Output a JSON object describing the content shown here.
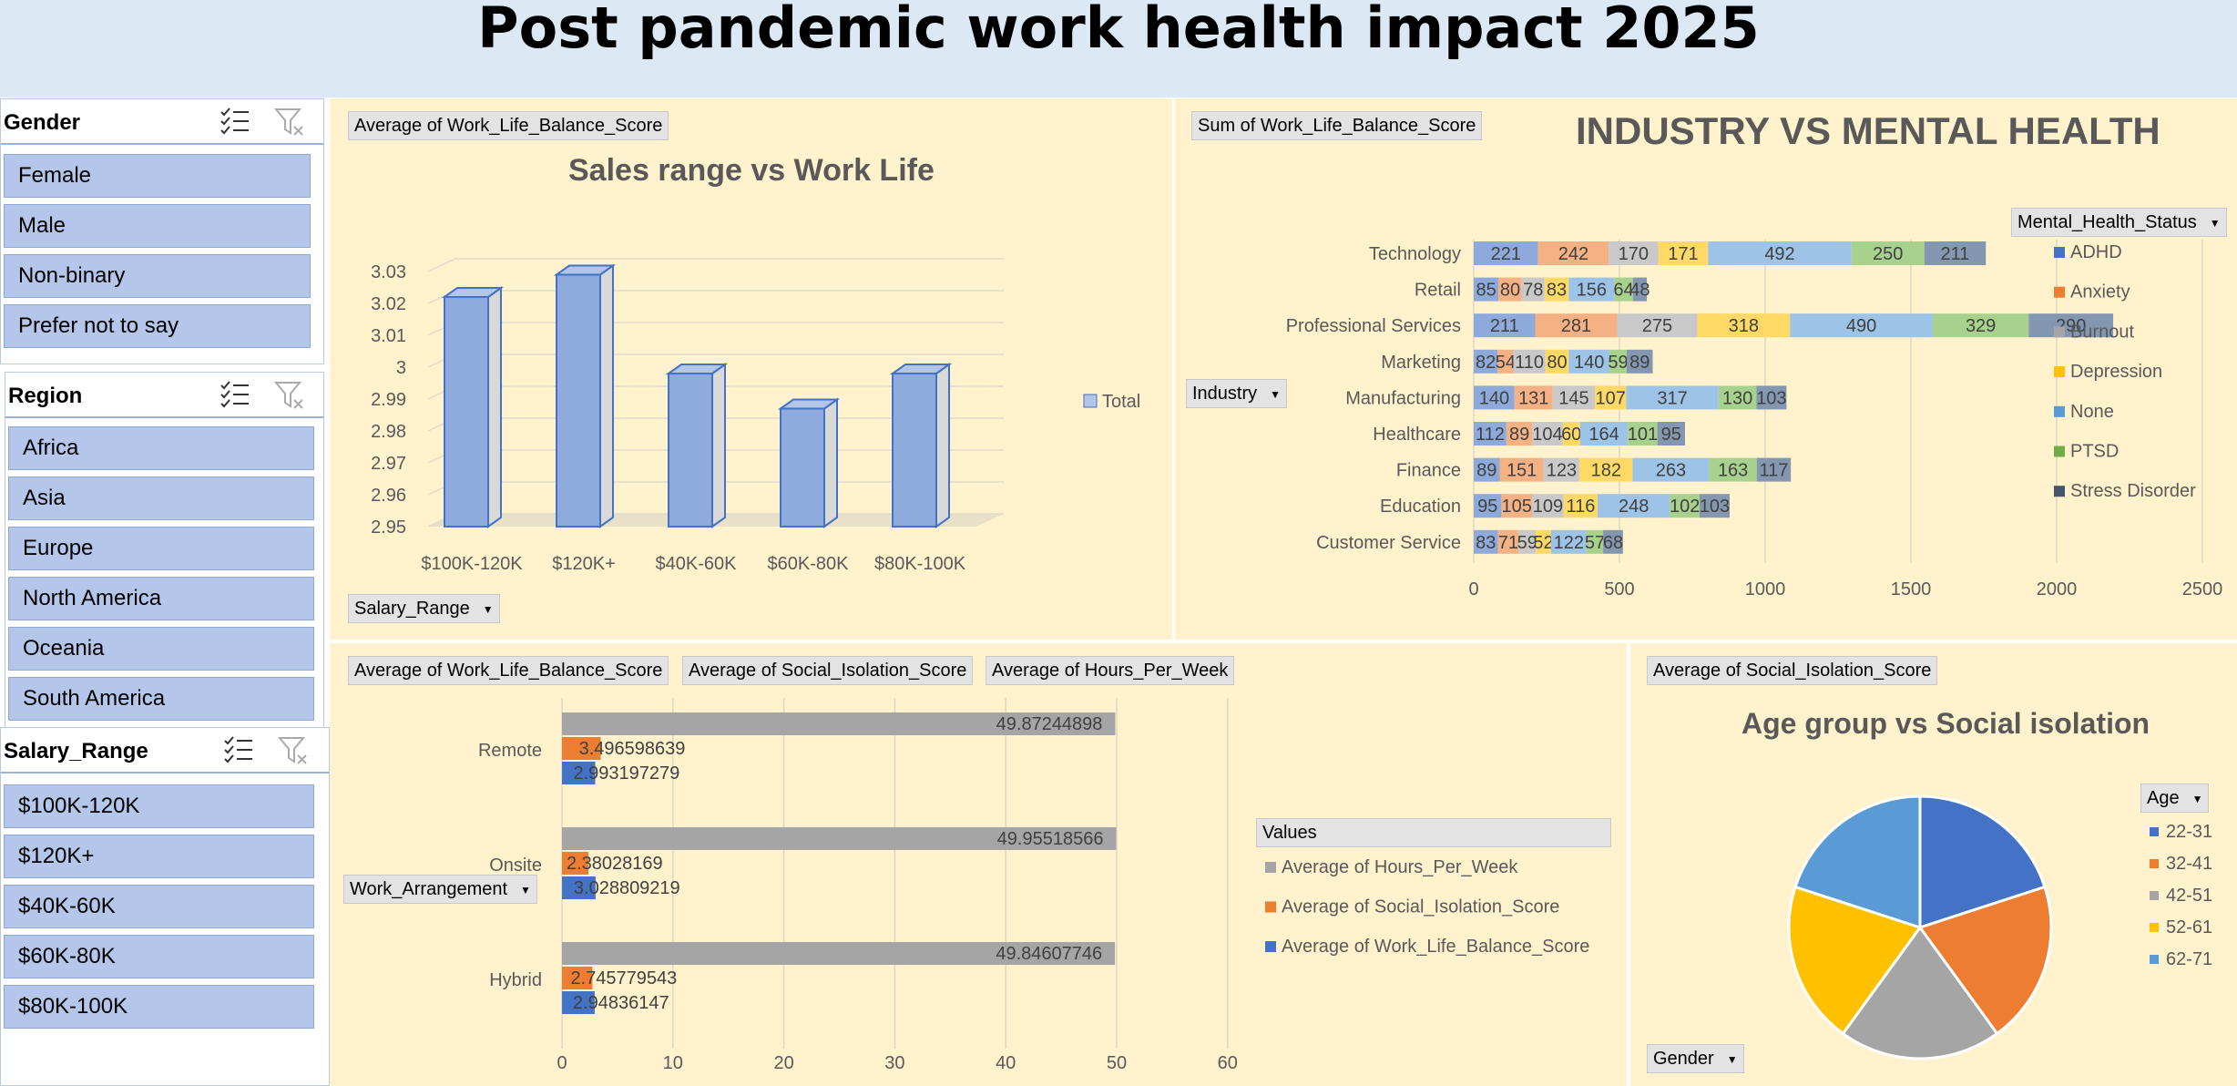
{
  "header": {
    "title": "Post pandemic work health impact 2025"
  },
  "slicers": {
    "gender": {
      "title": "Gender",
      "items": [
        "Female",
        "Male",
        "Non-binary",
        "Prefer not to say"
      ]
    },
    "region": {
      "title": "Region",
      "items": [
        "Africa",
        "Asia",
        "Europe",
        "North America",
        "Oceania",
        "South America"
      ]
    },
    "salary": {
      "title": "Salary_Range",
      "items": [
        "$100K-120K",
        "$120K+",
        "$40K-60K",
        "$60K-80K",
        "$80K-100K"
      ]
    }
  },
  "icons": {
    "multi_select": "multi-select-icon",
    "clear_filter": "clear-filter-icon",
    "dropdown": "dropdown-arrow-icon"
  },
  "colors": {
    "panel_bg": "#fff2cc",
    "header_bg": "#dde8f5",
    "slicer_item": "#b4c6ea",
    "blue": "#4472c4",
    "orange": "#ed7d31",
    "gray": "#a5a5a5",
    "yellow": "#ffc000",
    "light_blue": "#5b9bd5",
    "green": "#70ad47",
    "navy": "#44546a"
  },
  "chart1": {
    "value_field": "Average of Work_Life_Balance_Score",
    "axis_field": "Salary_Range",
    "chart_data": {
      "type": "bar",
      "title": "Sales range vs Work Life",
      "categories": [
        "$100K-120K",
        "$120K+",
        "$40K-60K",
        "$60K-80K",
        "$80K-100K"
      ],
      "series": [
        {
          "name": "Total",
          "values": [
            3.022,
            3.029,
            2.998,
            2.987,
            2.998
          ]
        }
      ],
      "ylim": [
        2.95,
        3.03
      ],
      "yticks": [
        "3.03",
        "3.02",
        "3.01",
        "3",
        "2.99",
        "2.98",
        "2.97",
        "2.96",
        "2.95"
      ],
      "legend": "right"
    }
  },
  "chart2": {
    "value_field": "Sum of Work_Life_Balance_Score",
    "axis_field": "Industry",
    "legend_field": "Mental_Health_Status",
    "chart_data": {
      "type": "bar",
      "orientation": "horizontal",
      "stacked": true,
      "title": "INDUSTRY VS MENTAL HEALTH",
      "categories": [
        "Technology",
        "Retail",
        "Professional Services",
        "Marketing",
        "Manufacturing",
        "Healthcare",
        "Finance",
        "Education",
        "Customer Service"
      ],
      "series": [
        {
          "name": "ADHD",
          "values": [
            221,
            85,
            211,
            82,
            140,
            112,
            89,
            95,
            83
          ]
        },
        {
          "name": "Anxiety",
          "values": [
            242,
            80,
            281,
            54,
            131,
            89,
            151,
            105,
            71
          ]
        },
        {
          "name": "Burnout",
          "values": [
            170,
            78,
            275,
            110,
            145,
            104,
            123,
            109,
            59
          ]
        },
        {
          "name": "Depression",
          "values": [
            171,
            83,
            318,
            80,
            107,
            60,
            182,
            116,
            52
          ]
        },
        {
          "name": "None",
          "values": [
            492,
            156,
            490,
            140,
            317,
            164,
            263,
            248,
            122
          ]
        },
        {
          "name": "PTSD",
          "values": [
            250,
            64,
            329,
            59,
            130,
            101,
            163,
            102,
            57
          ]
        },
        {
          "name": "Stress Disorder",
          "values": [
            211,
            48,
            290,
            89,
            103,
            95,
            117,
            103,
            68
          ]
        }
      ],
      "xlim": [
        0,
        2500
      ],
      "xticks": [
        "0",
        "500",
        "1000",
        "1500",
        "2000",
        "2500"
      ],
      "label_text": [
        [
          "221",
          "242",
          "170",
          "171",
          "492",
          "250",
          "211"
        ],
        [
          "85",
          "80",
          "78",
          "83",
          "156",
          "64",
          "48"
        ],
        [
          "211",
          "281",
          "275",
          "318",
          "490",
          "329",
          "290"
        ],
        [
          "82",
          "54",
          "110",
          "80",
          "140",
          "59",
          "89"
        ],
        [
          "140",
          "131",
          "145",
          "107",
          "317",
          "130",
          "103"
        ],
        [
          "112",
          "89",
          "104",
          "60",
          "164",
          "101",
          "95"
        ],
        [
          "89",
          "151",
          "123",
          "182",
          "263",
          "163",
          "117"
        ],
        [
          "95",
          "105",
          "109",
          "116",
          "248",
          "102",
          "103"
        ],
        [
          "83",
          "71",
          "59",
          "52",
          "122",
          "57",
          "68"
        ]
      ],
      "legend": "right"
    }
  },
  "chart3": {
    "value_fields": [
      "Average of Work_Life_Balance_Score",
      "Average of Social_Isolation_Score",
      "Average of Hours_Per_Week"
    ],
    "axis_field": "Work_Arrangement",
    "legend_title": "Values",
    "chart_data": {
      "type": "bar",
      "orientation": "horizontal",
      "title": "",
      "categories": [
        "Remote",
        "Onsite",
        "Hybrid"
      ],
      "series": [
        {
          "name": "Average of Hours_Per_Week",
          "values": [
            49.87244898,
            49.95518566,
            49.84607746
          ]
        },
        {
          "name": "Average of Social_Isolation_Score",
          "values": [
            3.496598639,
            2.38028169,
            2.745779543
          ]
        },
        {
          "name": "Average of Work_Life_Balance_Score",
          "values": [
            2.993197279,
            3.028809219,
            2.94836147
          ]
        }
      ],
      "label_text": [
        [
          "49.87244898",
          "3.496598639",
          "2.993197279"
        ],
        [
          "49.95518566",
          "2.38028169",
          "3.028809219"
        ],
        [
          "49.84607746",
          "2.745779543",
          "2.94836147"
        ]
      ],
      "xlim": [
        0,
        60
      ],
      "xticks": [
        "0",
        "10",
        "20",
        "30",
        "40",
        "50",
        "60"
      ],
      "legend": "right"
    }
  },
  "chart4": {
    "value_field": "Average of Social_Isolation_Score",
    "legend_field": "Age",
    "filter_field": "Gender",
    "chart_data": {
      "type": "pie",
      "title": "Age group vs Social isolation",
      "categories": [
        "22-31",
        "32-41",
        "42-51",
        "52-61",
        "62-71"
      ],
      "values": [
        20,
        20,
        20,
        20,
        20
      ],
      "legend": "right"
    }
  }
}
